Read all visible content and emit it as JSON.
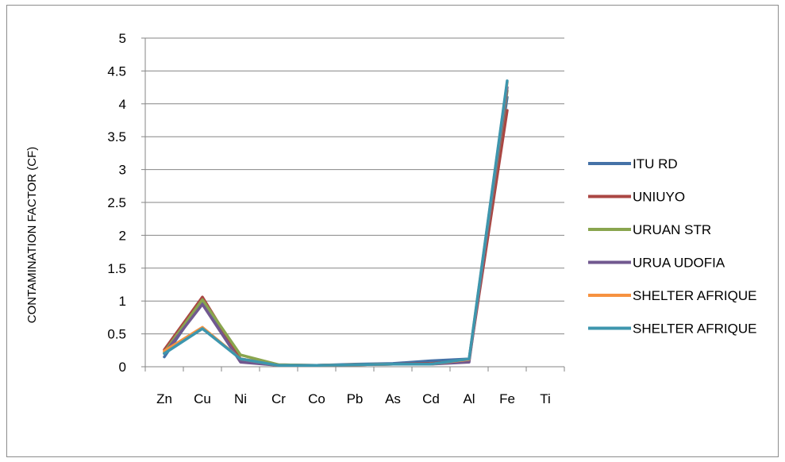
{
  "chart_data": {
    "type": "line",
    "title": "",
    "xlabel": "",
    "ylabel": "CONTAMINATION FACTOR  (CF)",
    "categories": [
      "Zn",
      "Cu",
      "Ni",
      "Cr",
      "Co",
      "Pb",
      "As",
      "Cd",
      "Al",
      "Fe",
      "Ti"
    ],
    "ylim": [
      0,
      5
    ],
    "yticks": [
      "0",
      "0.5",
      "1",
      "1.5",
      "2",
      "2.5",
      "3",
      "3.5",
      "4",
      "4.5",
      "5"
    ],
    "grid": "horizontal",
    "legend_position": "right",
    "series": [
      {
        "name": "ITU RD",
        "color": "#4572a7",
        "values": [
          0.15,
          1.0,
          0.1,
          0.02,
          0.02,
          0.04,
          0.05,
          0.09,
          0.12,
          4.1,
          null
        ]
      },
      {
        "name": "UNIUYO",
        "color": "#aa4643",
        "values": [
          0.26,
          1.06,
          0.12,
          0.03,
          0.02,
          0.03,
          0.04,
          0.05,
          0.1,
          3.9,
          null
        ]
      },
      {
        "name": "URUAN STR",
        "color": "#89a54e",
        "values": [
          0.22,
          1.02,
          0.18,
          0.03,
          0.02,
          0.03,
          0.04,
          0.04,
          0.1,
          4.2,
          null
        ]
      },
      {
        "name": "URUA UDOFIA",
        "color": "#71588f",
        "values": [
          0.2,
          0.95,
          0.07,
          0.02,
          0.02,
          0.03,
          0.04,
          0.04,
          0.07,
          4.25,
          null
        ]
      },
      {
        "name": "SHELTER AFRIQUE",
        "color": "#f69240",
        "values": [
          0.24,
          0.6,
          0.12,
          0.02,
          0.02,
          0.03,
          0.04,
          0.04,
          0.11,
          4.33,
          null
        ]
      },
      {
        "name": "SHELTER AFRIQUE",
        "color": "#3d96ae",
        "values": [
          0.2,
          0.58,
          0.12,
          0.02,
          0.02,
          0.03,
          0.04,
          0.04,
          0.12,
          4.35,
          null
        ]
      }
    ]
  }
}
